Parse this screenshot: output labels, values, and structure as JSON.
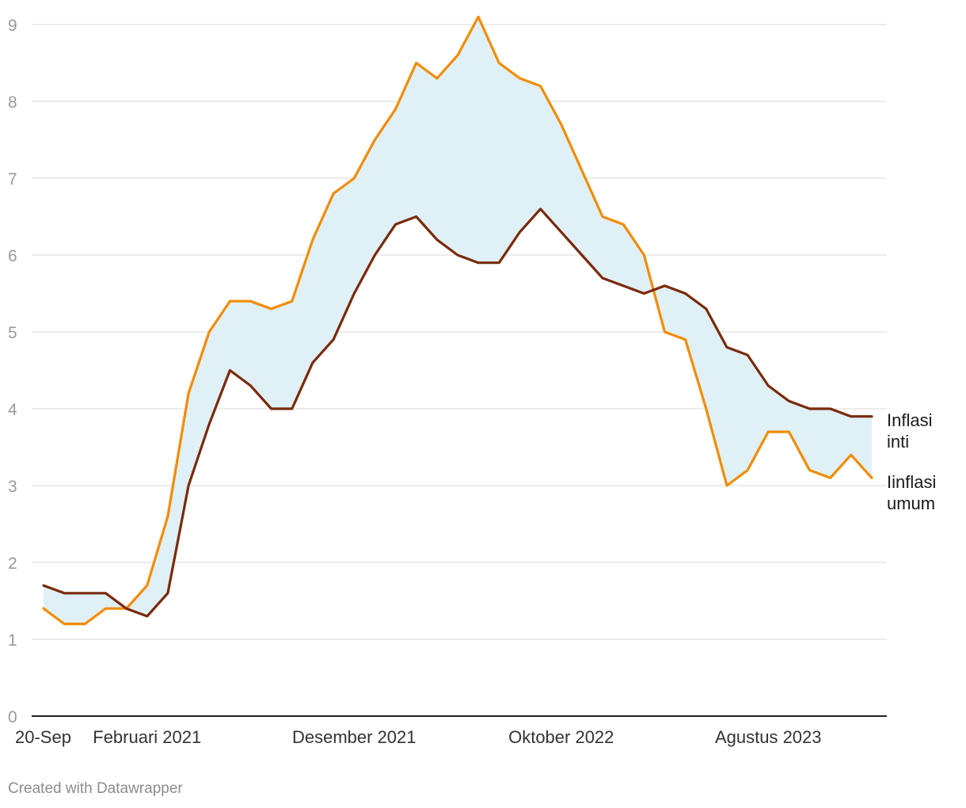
{
  "chart_data": {
    "type": "line",
    "title": "",
    "xlabel": "",
    "ylabel": "",
    "ylim": [
      0,
      9
    ],
    "yticks": [
      0,
      1,
      2,
      3,
      4,
      5,
      6,
      7,
      8,
      9
    ],
    "grid": true,
    "x_tick_labels": [
      "20-Sep",
      "Februari 2021",
      "Desember 2021",
      "Oktober 2022",
      "Agustus 2023"
    ],
    "x_tick_indices": [
      0,
      5,
      15,
      25,
      35
    ],
    "legend": "direct-labels-right",
    "band_between_series": true,
    "series": [
      {
        "name": "Iinflasi umum",
        "label_lines": [
          "Iinflasi",
          "umum"
        ],
        "color": "#f28c00",
        "values": [
          1.4,
          1.2,
          1.2,
          1.4,
          1.4,
          1.7,
          2.6,
          4.2,
          5.0,
          5.4,
          5.4,
          5.3,
          5.4,
          6.2,
          6.8,
          7.0,
          7.5,
          7.9,
          8.5,
          8.3,
          8.6,
          9.1,
          8.5,
          8.3,
          8.2,
          7.7,
          7.1,
          6.5,
          6.4,
          6.0,
          5.0,
          4.9,
          4.0,
          3.0,
          3.2,
          3.7,
          3.7,
          3.2,
          3.1,
          3.4,
          3.1
        ]
      },
      {
        "name": "Inflasi inti",
        "label_lines": [
          "Inflasi",
          "inti"
        ],
        "color": "#7a2a0a",
        "values": [
          1.7,
          1.6,
          1.6,
          1.6,
          1.4,
          1.3,
          1.6,
          3.0,
          3.8,
          4.5,
          4.3,
          4.0,
          4.0,
          4.6,
          4.9,
          5.5,
          6.0,
          6.4,
          6.5,
          6.2,
          6.0,
          5.9,
          5.9,
          6.3,
          6.6,
          6.3,
          6.0,
          5.7,
          5.6,
          5.5,
          5.6,
          5.5,
          5.3,
          4.8,
          4.7,
          4.3,
          4.1,
          4.0,
          4.0,
          3.9,
          3.9
        ]
      }
    ],
    "band_color": "#dff0f6",
    "grid_color": "#e0e0e0",
    "axis_color": "#222222"
  },
  "footer": {
    "credit": "Created with Datawrapper"
  }
}
